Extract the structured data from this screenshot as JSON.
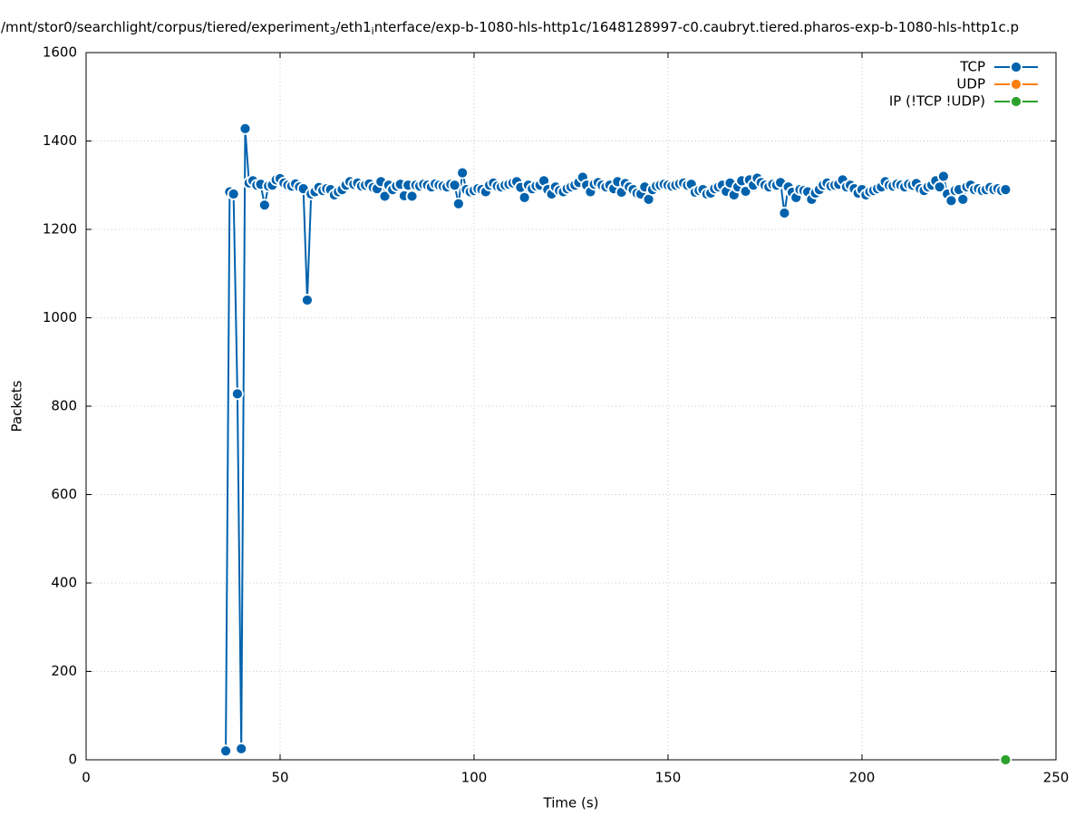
{
  "chart_data": {
    "type": "line",
    "title_segments": [
      {
        "text": "/mnt/stor0/searchlight/corpus/tiered/experiment",
        "subscript": false
      },
      {
        "text": "3",
        "subscript": true
      },
      {
        "text": "/eth1",
        "subscript": false
      },
      {
        "text": "i",
        "subscript": true
      },
      {
        "text": "nterface/exp-b-1080-hls-http1c/1648128997-c0.caubryt.tiered.pharos-exp-b-1080-hls-http1c.p",
        "subscript": false
      }
    ],
    "x_label": "Time (s)",
    "y_label": "Packets",
    "xlim": [
      0,
      250
    ],
    "xticks": [
      0,
      50,
      100,
      150,
      200,
      250
    ],
    "ylim": [
      0,
      1600
    ],
    "yticks": [
      0,
      200,
      400,
      600,
      800,
      1000,
      1200,
      1400,
      1600
    ],
    "grid": true,
    "legend": "top-right",
    "series": [
      {
        "name": "TCP",
        "color": "#0062ad",
        "x": [
          36,
          37,
          38,
          39,
          40,
          41,
          42,
          43,
          44,
          45,
          46,
          47,
          48,
          49,
          50,
          51,
          52,
          53,
          54,
          55,
          56,
          57,
          58,
          59,
          60,
          61,
          62,
          63,
          64,
          65,
          66,
          67,
          68,
          69,
          70,
          71,
          72,
          73,
          74,
          75,
          76,
          77,
          78,
          79,
          80,
          81,
          82,
          83,
          84,
          85,
          86,
          87,
          88,
          89,
          90,
          91,
          92,
          93,
          94,
          95,
          96,
          97,
          98,
          99,
          100,
          101,
          102,
          103,
          104,
          105,
          106,
          107,
          108,
          109,
          110,
          111,
          112,
          113,
          114,
          115,
          116,
          117,
          118,
          119,
          120,
          121,
          122,
          123,
          124,
          125,
          126,
          127,
          128,
          129,
          130,
          131,
          132,
          133,
          134,
          135,
          136,
          137,
          138,
          139,
          140,
          141,
          142,
          143,
          144,
          145,
          146,
          147,
          148,
          149,
          150,
          151,
          152,
          153,
          154,
          155,
          156,
          157,
          158,
          159,
          160,
          161,
          162,
          163,
          164,
          165,
          166,
          167,
          168,
          169,
          170,
          171,
          172,
          173,
          174,
          175,
          176,
          177,
          178,
          179,
          180,
          181,
          182,
          183,
          184,
          185,
          186,
          187,
          188,
          189,
          190,
          191,
          192,
          193,
          194,
          195,
          196,
          197,
          198,
          199,
          200,
          201,
          202,
          203,
          204,
          205,
          206,
          207,
          208,
          209,
          210,
          211,
          212,
          213,
          214,
          215,
          216,
          217,
          218,
          219,
          220,
          221,
          222,
          223,
          224,
          225,
          226,
          227,
          228,
          229,
          230,
          231,
          232,
          233,
          234,
          235,
          236,
          237
        ],
        "values": [
          20,
          1285,
          1280,
          828,
          25,
          1428,
          1305,
          1310,
          1300,
          1302,
          1255,
          1298,
          1300,
          1312,
          1315,
          1305,
          1300,
          1298,
          1303,
          1296,
          1292,
          1040,
          1280,
          1285,
          1295,
          1288,
          1292,
          1290,
          1278,
          1285,
          1290,
          1300,
          1308,
          1302,
          1305,
          1298,
          1300,
          1303,
          1295,
          1292,
          1308,
          1275,
          1300,
          1290,
          1298,
          1302,
          1276,
          1300,
          1275,
          1300,
          1298,
          1302,
          1300,
          1296,
          1303,
          1300,
          1298,
          1296,
          1302,
          1300,
          1258,
          1328,
          1290,
          1285,
          1288,
          1292,
          1290,
          1285,
          1300,
          1305,
          1298,
          1296,
          1300,
          1302,
          1305,
          1308,
          1295,
          1272,
          1300,
          1292,
          1298,
          1300,
          1310,
          1290,
          1280,
          1296,
          1288,
          1285,
          1292,
          1296,
          1300,
          1306,
          1318,
          1300,
          1285,
          1302,
          1306,
          1300,
          1296,
          1300,
          1292,
          1308,
          1284,
          1304,
          1296,
          1290,
          1282,
          1280,
          1296,
          1268,
          1290,
          1298,
          1300,
          1302,
          1300,
          1298,
          1300,
          1303,
          1305,
          1300,
          1302,
          1284,
          1288,
          1290,
          1280,
          1282,
          1292,
          1296,
          1300,
          1286,
          1305,
          1278,
          1296,
          1310,
          1286,
          1312,
          1300,
          1316,
          1306,
          1300,
          1296,
          1302,
          1300,
          1306,
          1237,
          1296,
          1284,
          1272,
          1290,
          1288,
          1285,
          1268,
          1282,
          1290,
          1300,
          1305,
          1298,
          1300,
          1302,
          1312,
          1296,
          1300,
          1292,
          1282,
          1290,
          1278,
          1285,
          1288,
          1292,
          1296,
          1308,
          1300,
          1298,
          1302,
          1300,
          1296,
          1302,
          1300,
          1304,
          1292,
          1288,
          1296,
          1300,
          1310,
          1296,
          1320,
          1280,
          1265,
          1288,
          1290,
          1268,
          1296,
          1300,
          1290,
          1292,
          1288,
          1290,
          1295,
          1290,
          1292,
          1288,
          1290
        ]
      },
      {
        "name": "UDP",
        "color": "#ff7f0e",
        "x": [],
        "values": []
      },
      {
        "name": "IP (!TCP  !UDP)",
        "color": "#2ca02c",
        "x": [
          237
        ],
        "values": [
          0
        ]
      }
    ]
  }
}
